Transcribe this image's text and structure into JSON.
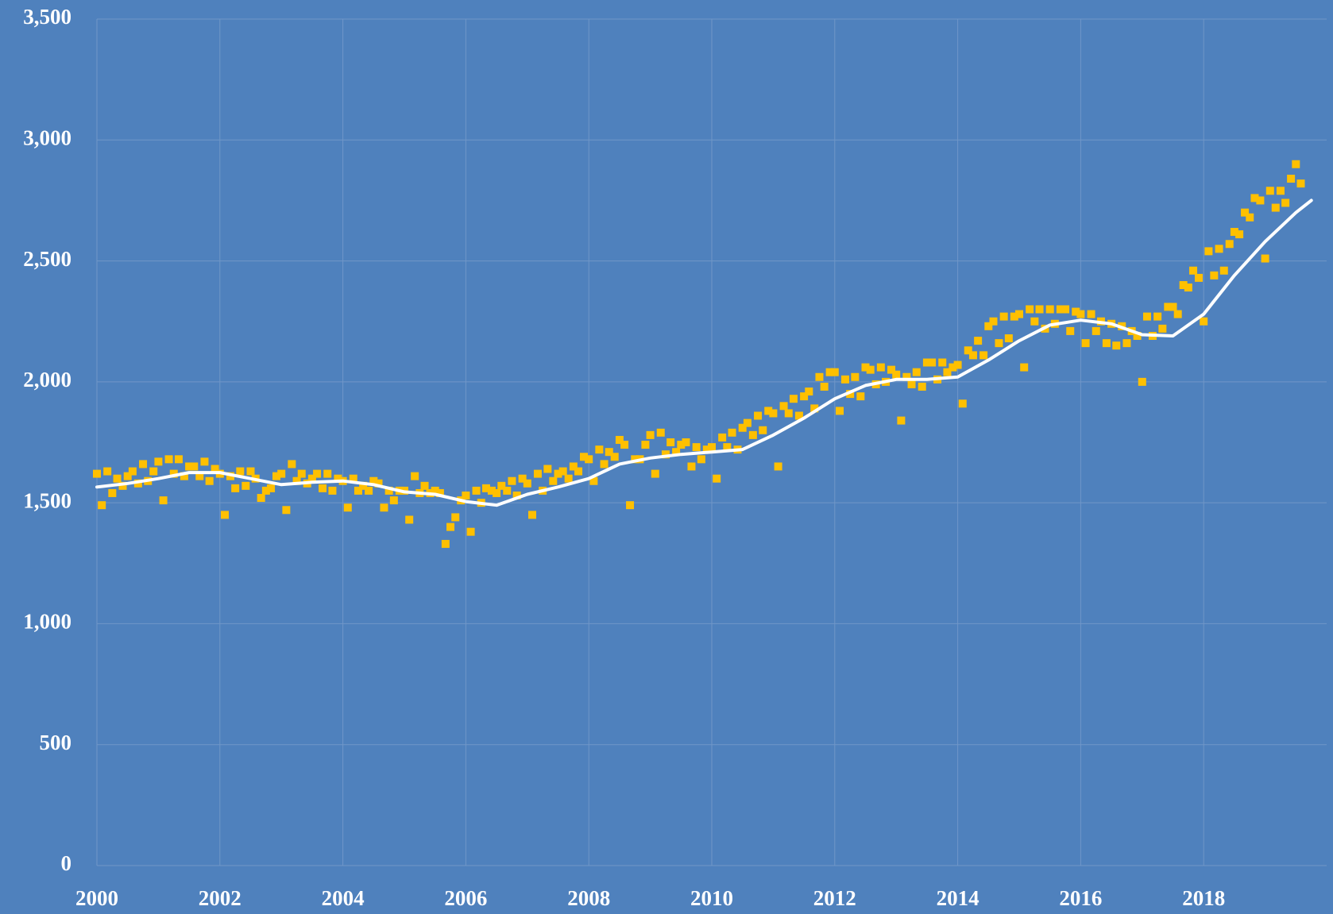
{
  "chart_data": {
    "type": "scatter",
    "xlim": [
      2000,
      2020
    ],
    "xticks": [
      2000,
      2002,
      2004,
      2006,
      2008,
      2010,
      2012,
      2014,
      2016,
      2018
    ],
    "ylim": [
      0,
      3500
    ],
    "yticks": [
      0,
      500,
      {
        "value": 1000,
        "label": "1,000"
      },
      {
        "value": 1500,
        "label": "1,500"
      },
      {
        "value": 2000,
        "label": "2,000"
      },
      {
        "value": 2500,
        "label": "2,500"
      },
      {
        "value": 3000,
        "label": "3,000"
      },
      {
        "value": 3500,
        "label": "3,500"
      }
    ],
    "grid": true,
    "series": [
      {
        "type": "scatter",
        "color": "#ffc000",
        "x": [
          2000,
          2000.08,
          2000.17,
          2000.25,
          2000.33,
          2000.42,
          2000.5,
          2000.58,
          2000.67,
          2000.75,
          2000.83,
          2000.92,
          2001,
          2001.08,
          2001.17,
          2001.25,
          2001.33,
          2001.42,
          2001.5,
          2001.58,
          2001.67,
          2001.75,
          2001.83,
          2001.92,
          2002,
          2002.08,
          2002.17,
          2002.25,
          2002.33,
          2002.42,
          2002.5,
          2002.58,
          2002.67,
          2002.75,
          2002.83,
          2002.92,
          2003,
          2003.08,
          2003.17,
          2003.25,
          2003.33,
          2003.42,
          2003.5,
          2003.58,
          2003.67,
          2003.75,
          2003.83,
          2003.92,
          2004,
          2004.08,
          2004.17,
          2004.25,
          2004.33,
          2004.42,
          2004.5,
          2004.58,
          2004.67,
          2004.75,
          2004.83,
          2004.92,
          2005,
          2005.08,
          2005.17,
          2005.25,
          2005.33,
          2005.42,
          2005.5,
          2005.58,
          2005.67,
          2005.75,
          2005.83,
          2005.92,
          2006,
          2006.08,
          2006.17,
          2006.25,
          2006.33,
          2006.42,
          2006.5,
          2006.58,
          2006.67,
          2006.75,
          2006.83,
          2006.92,
          2007,
          2007.08,
          2007.17,
          2007.25,
          2007.33,
          2007.42,
          2007.5,
          2007.58,
          2007.67,
          2007.75,
          2007.83,
          2007.92,
          2008,
          2008.08,
          2008.17,
          2008.25,
          2008.33,
          2008.42,
          2008.5,
          2008.58,
          2008.67,
          2008.75,
          2008.83,
          2008.92,
          2009,
          2009.08,
          2009.17,
          2009.25,
          2009.33,
          2009.42,
          2009.5,
          2009.58,
          2009.67,
          2009.75,
          2009.83,
          2009.92,
          2010,
          2010.08,
          2010.17,
          2010.25,
          2010.33,
          2010.42,
          2010.5,
          2010.58,
          2010.67,
          2010.75,
          2010.83,
          2010.92,
          2011,
          2011.08,
          2011.17,
          2011.25,
          2011.33,
          2011.42,
          2011.5,
          2011.58,
          2011.67,
          2011.75,
          2011.83,
          2011.92,
          2012,
          2012.08,
          2012.17,
          2012.25,
          2012.33,
          2012.42,
          2012.5,
          2012.58,
          2012.67,
          2012.75,
          2012.83,
          2012.92,
          2013,
          2013.08,
          2013.17,
          2013.25,
          2013.33,
          2013.42,
          2013.5,
          2013.58,
          2013.67,
          2013.75,
          2013.83,
          2013.92,
          2014,
          2014.08,
          2014.17,
          2014.25,
          2014.33,
          2014.42,
          2014.5,
          2014.58,
          2014.67,
          2014.75,
          2014.83,
          2014.92,
          2015,
          2015.08,
          2015.17,
          2015.25,
          2015.33,
          2015.42,
          2015.5,
          2015.58,
          2015.67,
          2015.75,
          2015.83,
          2015.92,
          2016,
          2016.08,
          2016.17,
          2016.25,
          2016.33,
          2016.42,
          2016.5,
          2016.58,
          2016.67,
          2016.75,
          2016.83,
          2016.92,
          2017,
          2017.08,
          2017.17,
          2017.25,
          2017.33,
          2017.42,
          2017.5,
          2017.58,
          2017.67,
          2017.75,
          2017.83,
          2017.92,
          2018,
          2018.08,
          2018.17,
          2018.25,
          2018.33,
          2018.42,
          2018.5,
          2018.58,
          2018.67,
          2018.75,
          2018.83,
          2018.92,
          2019,
          2019.08,
          2019.17,
          2019.25,
          2019.33,
          2019.42,
          2019.5,
          2019.58
        ],
        "values": [
          1620,
          1490,
          1630,
          1540,
          1600,
          1570,
          1610,
          1630,
          1580,
          1660,
          1590,
          1630,
          1670,
          1510,
          1680,
          1620,
          1680,
          1610,
          1650,
          1650,
          1610,
          1670,
          1590,
          1640,
          1620,
          1450,
          1610,
          1560,
          1630,
          1570,
          1630,
          1600,
          1520,
          1550,
          1560,
          1610,
          1620,
          1470,
          1660,
          1590,
          1620,
          1580,
          1600,
          1620,
          1560,
          1620,
          1550,
          1600,
          1590,
          1480,
          1600,
          1550,
          1570,
          1550,
          1590,
          1580,
          1480,
          1550,
          1510,
          1550,
          1550,
          1430,
          1610,
          1540,
          1570,
          1540,
          1550,
          1540,
          1330,
          1400,
          1440,
          1510,
          1530,
          1380,
          1550,
          1500,
          1560,
          1550,
          1540,
          1570,
          1550,
          1590,
          1530,
          1600,
          1580,
          1450,
          1620,
          1550,
          1640,
          1590,
          1620,
          1630,
          1600,
          1650,
          1630,
          1690,
          1680,
          1590,
          1720,
          1660,
          1710,
          1690,
          1760,
          1740,
          1490,
          1680,
          1680,
          1740,
          1780,
          1620,
          1790,
          1700,
          1750,
          1710,
          1740,
          1750,
          1650,
          1730,
          1680,
          1720,
          1730,
          1600,
          1770,
          1730,
          1790,
          1720,
          1810,
          1830,
          1780,
          1860,
          1800,
          1880,
          1870,
          1650,
          1900,
          1870,
          1930,
          1860,
          1940,
          1960,
          1890,
          2020,
          1980,
          2040,
          2040,
          1880,
          2010,
          1950,
          2020,
          1940,
          2060,
          2050,
          1990,
          2060,
          2000,
          2050,
          2030,
          1840,
          2020,
          1990,
          2040,
          1980,
          2080,
          2080,
          2010,
          2080,
          2040,
          2060,
          2070,
          1910,
          2130,
          2110,
          2170,
          2110,
          2230,
          2250,
          2160,
          2270,
          2180,
          2270,
          2280,
          2060,
          2300,
          2250,
          2300,
          2220,
          2300,
          2240,
          2300,
          2300,
          2210,
          2290,
          2280,
          2160,
          2280,
          2210,
          2250,
          2160,
          2240,
          2150,
          2230,
          2160,
          2210,
          2190,
          2000,
          2270,
          2190,
          2270,
          2220,
          2310,
          2310,
          2280,
          2400,
          2390,
          2460,
          2430,
          2250,
          2540,
          2440,
          2550,
          2460,
          2570,
          2620,
          2610,
          2700,
          2680,
          2760,
          2750,
          2510,
          2790,
          2720,
          2790,
          2740,
          2840,
          2900,
          2820
        ]
      },
      {
        "type": "line",
        "color": "#ffffff",
        "x": [
          2000,
          2000.5,
          2001,
          2001.5,
          2002,
          2002.5,
          2003,
          2003.5,
          2004,
          2004.5,
          2005,
          2005.5,
          2006,
          2006.5,
          2007,
          2007.5,
          2008,
          2008.5,
          2009,
          2009.5,
          2010,
          2010.5,
          2011,
          2011.5,
          2012,
          2012.5,
          2013,
          2013.5,
          2014,
          2014.5,
          2015,
          2015.5,
          2016,
          2016.5,
          2017,
          2017.5,
          2018,
          2018.5,
          2019,
          2019.5,
          2019.75
        ],
        "values": [
          1565,
          1580,
          1600,
          1625,
          1625,
          1600,
          1575,
          1585,
          1590,
          1575,
          1545,
          1535,
          1505,
          1490,
          1535,
          1565,
          1600,
          1660,
          1685,
          1700,
          1710,
          1720,
          1780,
          1850,
          1930,
          1985,
          2010,
          2010,
          2020,
          2090,
          2170,
          2235,
          2255,
          2240,
          2195,
          2190,
          2280,
          2440,
          2580,
          2700,
          2750
        ]
      }
    ]
  }
}
